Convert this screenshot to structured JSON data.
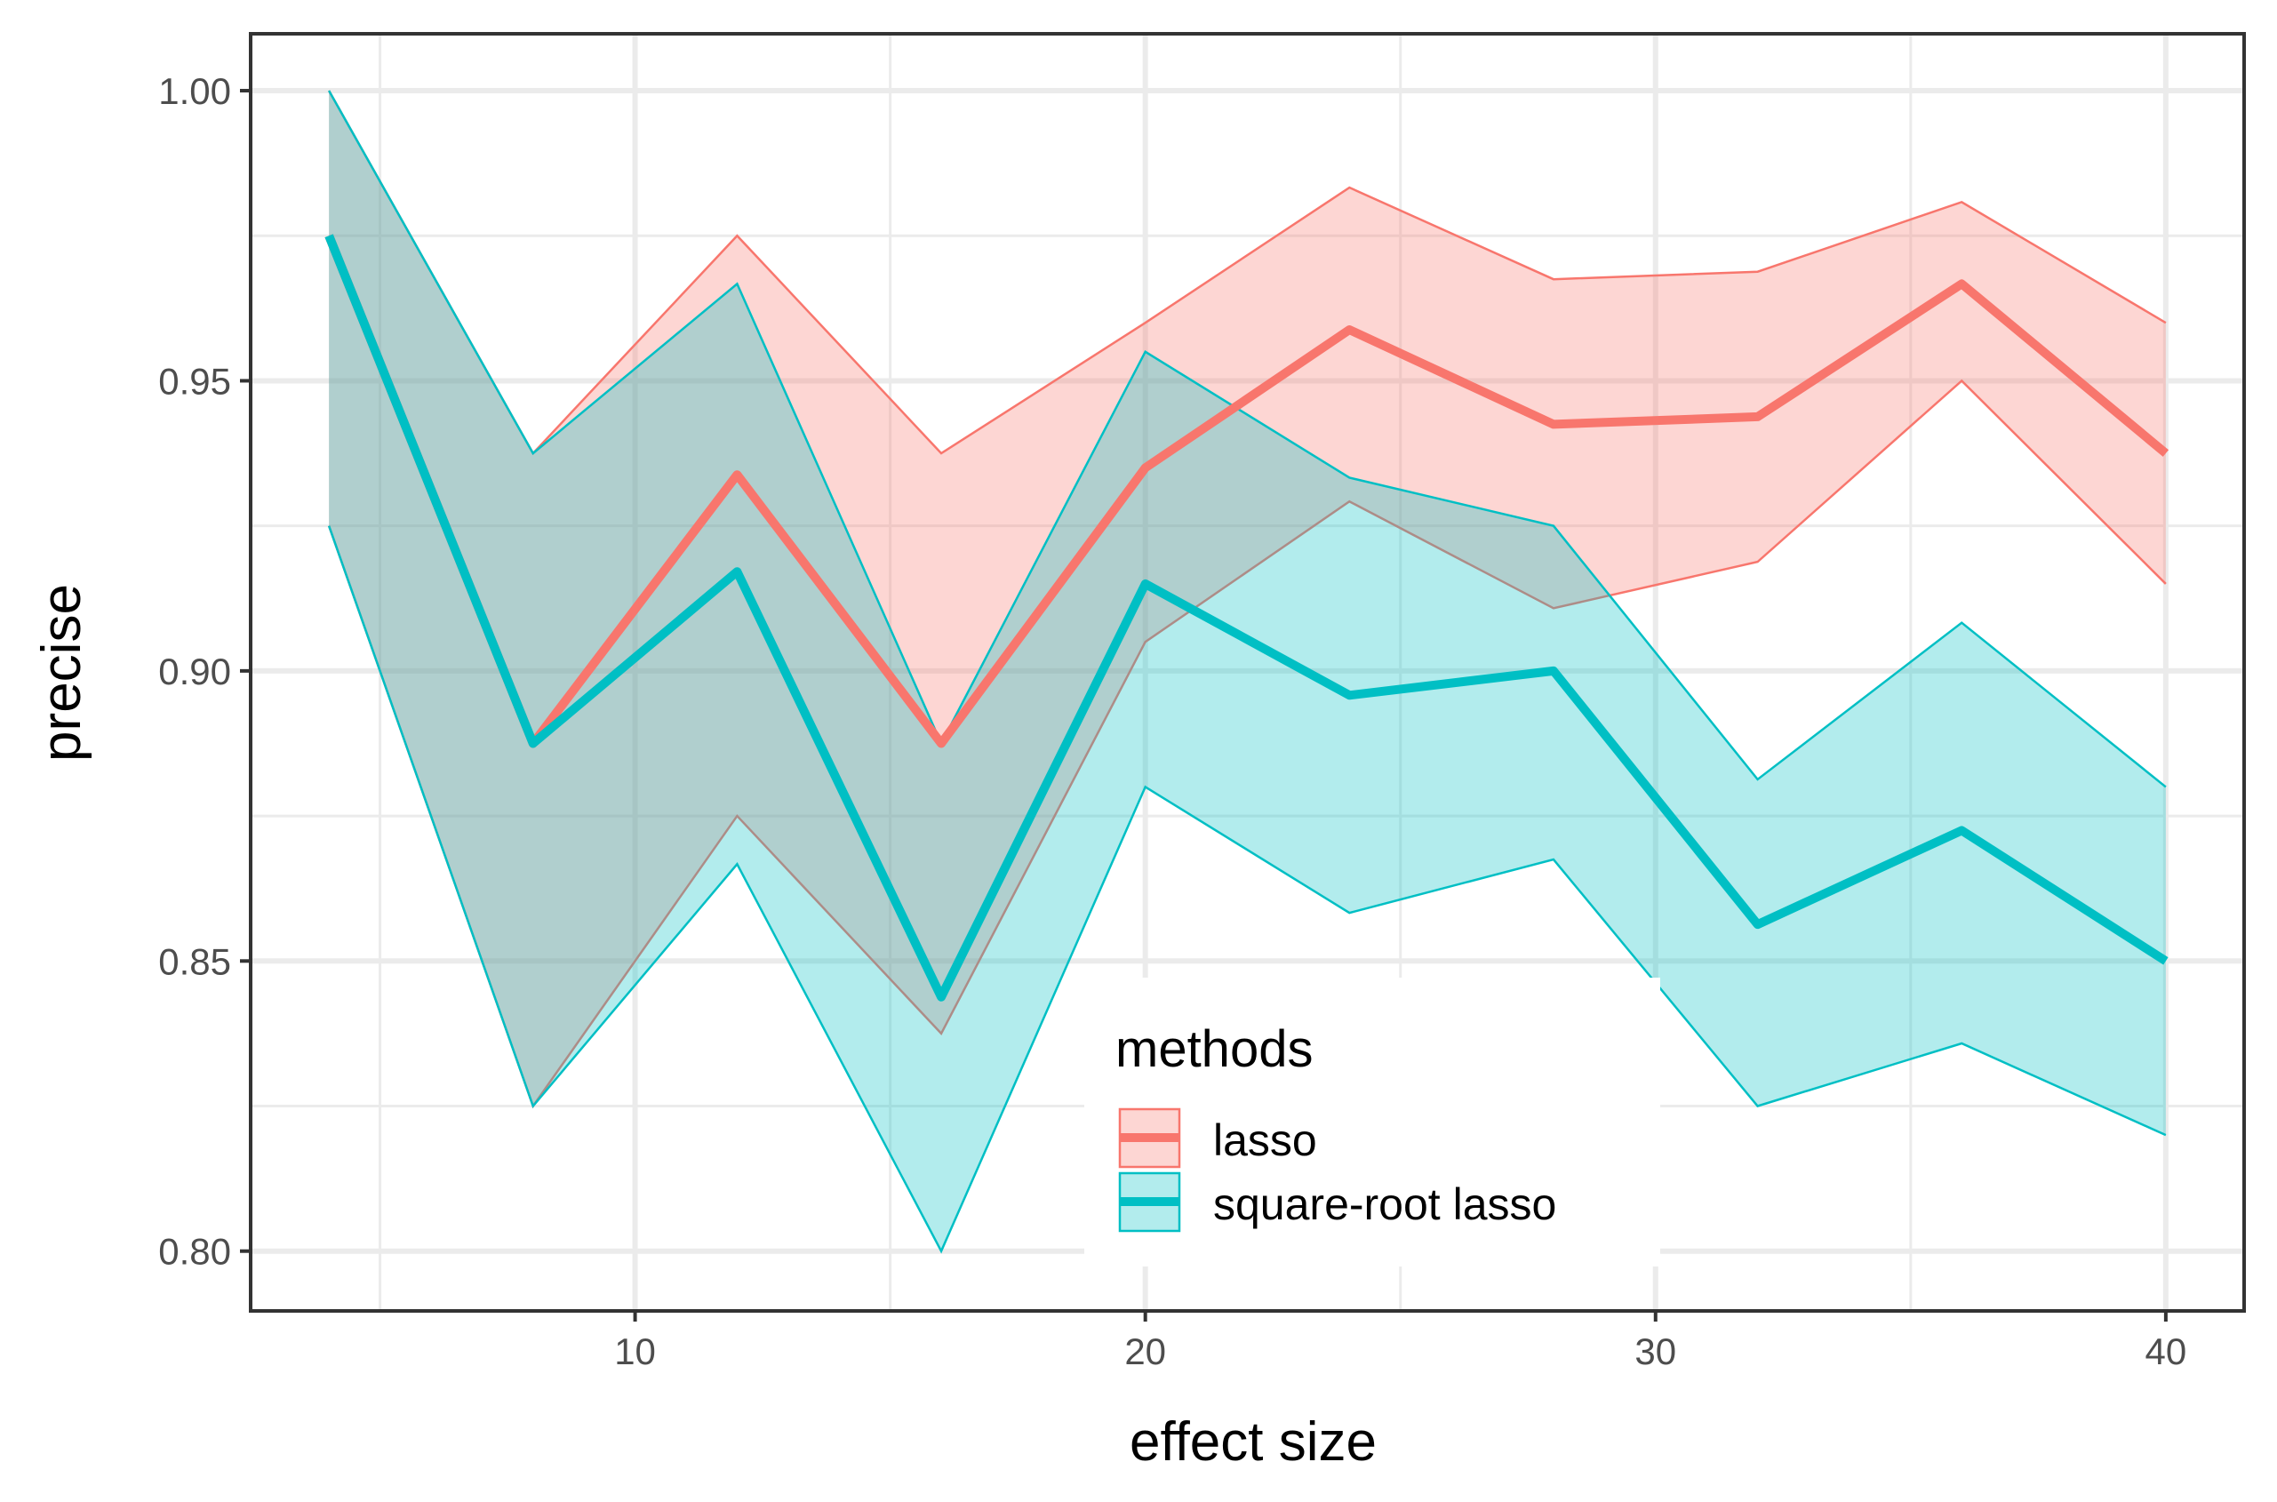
{
  "chart_data": {
    "type": "line",
    "xlabel": "effect size",
    "ylabel": "precise",
    "xlim": [
      2.5,
      41.5
    ],
    "ylim": [
      0.79,
      1.0095
    ],
    "x_ticks": [
      10,
      20,
      30,
      40
    ],
    "x_tick_labels": [
      "10",
      "20",
      "30",
      "40"
    ],
    "y_ticks": [
      0.8,
      0.85,
      0.9,
      0.95,
      1.0
    ],
    "y_tick_labels": [
      "0.80",
      "0.85",
      "0.90",
      "0.95",
      "1.00"
    ],
    "x_minor": [
      5,
      15,
      25,
      35
    ],
    "y_minor": [
      0.825,
      0.875,
      0.925,
      0.975
    ],
    "grid": true,
    "x": [
      4,
      8,
      12,
      16,
      20,
      24,
      28,
      32,
      36,
      40
    ],
    "series": [
      {
        "name": "lasso",
        "color": "#F8766D",
        "values": [
          0.975,
          0.8875,
          0.9338,
          0.8875,
          0.935,
          0.9588,
          0.9425,
          0.9438,
          0.9667,
          0.9375
        ],
        "lower": [
          0.925,
          0.825,
          0.875,
          0.8375,
          0.905,
          0.9292,
          0.9108,
          0.9188,
          0.95,
          0.915
        ],
        "upper": [
          1.0,
          0.9375,
          0.975,
          0.9375,
          0.96,
          0.9833,
          0.9675,
          0.9688,
          0.9808,
          0.96
        ]
      },
      {
        "name": "square-root lasso",
        "color": "#00BFC4",
        "values": [
          0.975,
          0.8875,
          0.9171,
          0.8438,
          0.915,
          0.8958,
          0.9,
          0.8563,
          0.8725,
          0.85
        ],
        "lower": [
          0.925,
          0.825,
          0.8667,
          0.8,
          0.88,
          0.8583,
          0.8675,
          0.825,
          0.8358,
          0.82
        ],
        "upper": [
          1.0,
          0.9375,
          0.9667,
          0.8875,
          0.955,
          0.9333,
          0.925,
          0.8813,
          0.9083,
          0.88
        ]
      }
    ],
    "legend": {
      "title": "methods",
      "placement": "inside-bottom-center"
    }
  }
}
